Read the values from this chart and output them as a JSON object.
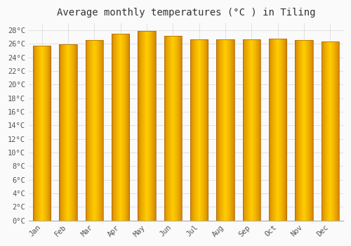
{
  "title": "Average monthly temperatures (°C ) in Tiling",
  "months": [
    "Jan",
    "Feb",
    "Mar",
    "Apr",
    "May",
    "Jun",
    "Jul",
    "Aug",
    "Sep",
    "Oct",
    "Nov",
    "Dec"
  ],
  "temperatures": [
    25.7,
    25.9,
    26.5,
    27.5,
    27.9,
    27.2,
    26.6,
    26.6,
    26.6,
    26.7,
    26.5,
    26.3
  ],
  "bar_color_center": "#FFD000",
  "bar_color_edge": "#CC7700",
  "background_color": "#FAFAFA",
  "plot_bg_color": "#FAFAFA",
  "grid_color": "#DDDDDD",
  "ytick_values": [
    0,
    2,
    4,
    6,
    8,
    10,
    12,
    14,
    16,
    18,
    20,
    22,
    24,
    26,
    28
  ],
  "ytick_labels": [
    "0°C",
    "2°C",
    "4°C",
    "6°C",
    "8°C",
    "10°C",
    "12°C",
    "14°C",
    "16°C",
    "18°C",
    "20°C",
    "22°C",
    "24°C",
    "26°C",
    "28°C"
  ],
  "ylim_max": 29,
  "bar_width": 0.68,
  "title_fontsize": 10,
  "tick_fontsize": 7.5,
  "font_family": "monospace",
  "n_gradient": 80,
  "spine_color": "#AAAAAA"
}
